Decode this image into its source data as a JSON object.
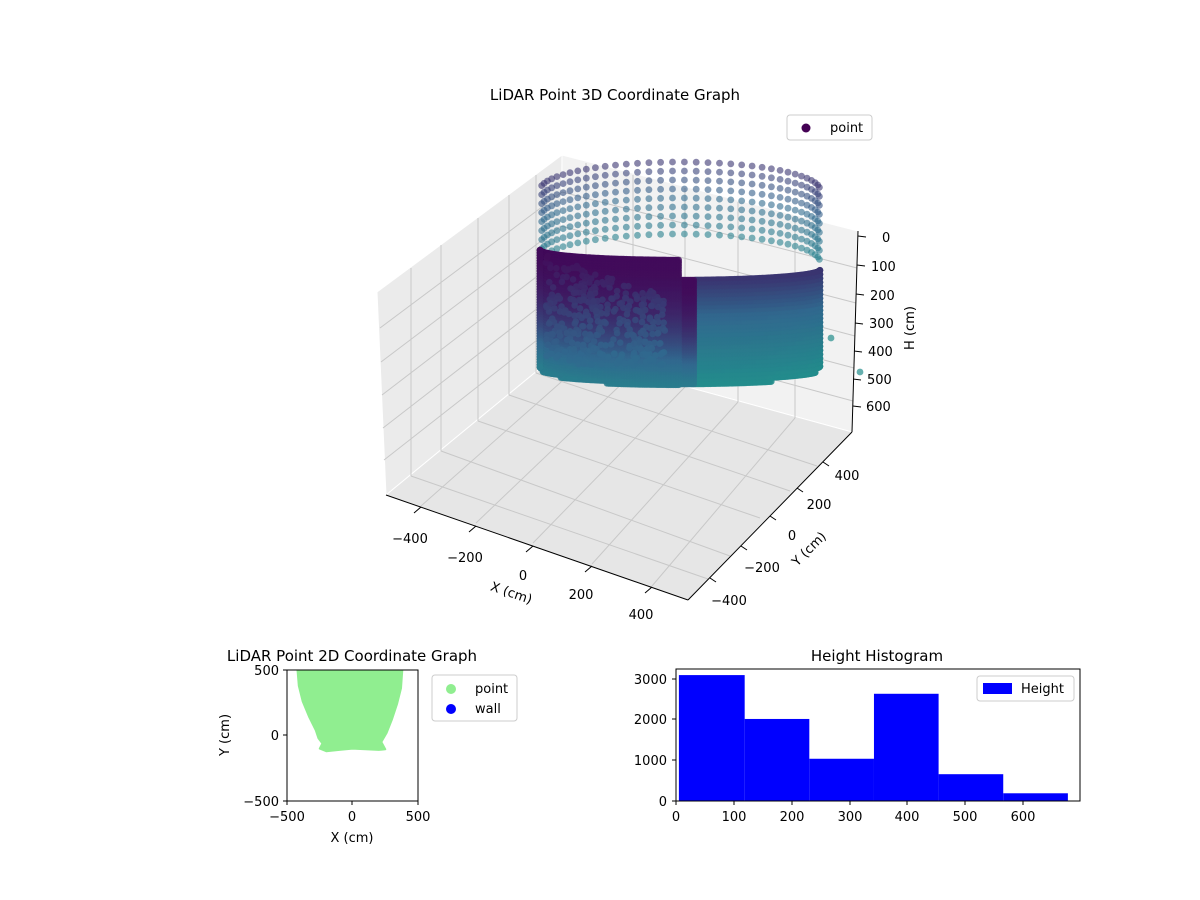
{
  "colors": {
    "viridis_dark": "#440154",
    "viridis_mid": "#31688e",
    "viridis_teal": "#21918c",
    "scatter2d_point": "#90ee90",
    "scatter2d_wall": "#0000ff",
    "hist_fill": "#0000ff",
    "pane": "#f2f2f2",
    "grid": "#cccccc"
  },
  "chart_data": [
    {
      "type": "scatter",
      "projection": "3d",
      "title": "LiDAR Point 3D Coordinate Graph",
      "xlabel": "X (cm)",
      "ylabel": "Y (cm)",
      "zlabel": "H (cm)",
      "x_ticks": [
        "−400",
        "−200",
        "0",
        "200",
        "400"
      ],
      "y_ticks": [
        "−400",
        "−200",
        "0",
        "200",
        "400"
      ],
      "z_ticks": [
        "0",
        "100",
        "200",
        "300",
        "400",
        "500",
        "600"
      ],
      "z_inverted": true,
      "colormap": "viridis",
      "legend": {
        "entries": [
          "point"
        ],
        "position": "upper right"
      },
      "grid": true
    },
    {
      "type": "scatter",
      "title": "LiDAR Point 2D Coordinate Graph",
      "xlabel": "X (cm)",
      "ylabel": "Y (cm)",
      "xlim": [
        -500,
        500
      ],
      "ylim": [
        -500,
        500
      ],
      "x_ticks": [
        "−500",
        "0",
        "500"
      ],
      "y_ticks": [
        "−500",
        "0",
        "500"
      ],
      "series": [
        {
          "name": "point",
          "color": "#90ee90",
          "outline": [
            [
              -420,
              500
            ],
            [
              -410,
              380
            ],
            [
              -380,
              260
            ],
            [
              -330,
              140
            ],
            [
              -280,
              40
            ],
            [
              -260,
              -20
            ],
            [
              -230,
              -60
            ],
            [
              -250,
              -100
            ],
            [
              -200,
              -120
            ],
            [
              -100,
              -110
            ],
            [
              0,
              -100
            ],
            [
              100,
              -105
            ],
            [
              200,
              -110
            ],
            [
              250,
              -105
            ],
            [
              220,
              -50
            ],
            [
              260,
              20
            ],
            [
              300,
              120
            ],
            [
              340,
              240
            ],
            [
              370,
              360
            ],
            [
              380,
              500
            ]
          ]
        },
        {
          "name": "wall",
          "color": "#0000ff",
          "points": []
        }
      ],
      "legend": {
        "entries": [
          "point",
          "wall"
        ],
        "position": "outside right"
      },
      "grid": false
    },
    {
      "type": "bar",
      "title": "Height Histogram",
      "xlabel": "",
      "ylabel": "",
      "xlim": [
        0,
        700
      ],
      "ylim": [
        0,
        3250
      ],
      "x_ticks": [
        "0",
        "100",
        "200",
        "300",
        "400",
        "500",
        "600"
      ],
      "y_ticks": [
        "0",
        "1000",
        "2000",
        "3000"
      ],
      "bins": [
        {
          "start": 5,
          "end": 119,
          "count": 3100
        },
        {
          "start": 119,
          "end": 231,
          "count": 2020
        },
        {
          "start": 231,
          "end": 343,
          "count": 1040
        },
        {
          "start": 343,
          "end": 455,
          "count": 2640
        },
        {
          "start": 455,
          "end": 567,
          "count": 660
        },
        {
          "start": 567,
          "end": 679,
          "count": 190
        }
      ],
      "legend": {
        "entries": [
          "Height"
        ],
        "position": "upper right"
      },
      "grid": false
    }
  ]
}
